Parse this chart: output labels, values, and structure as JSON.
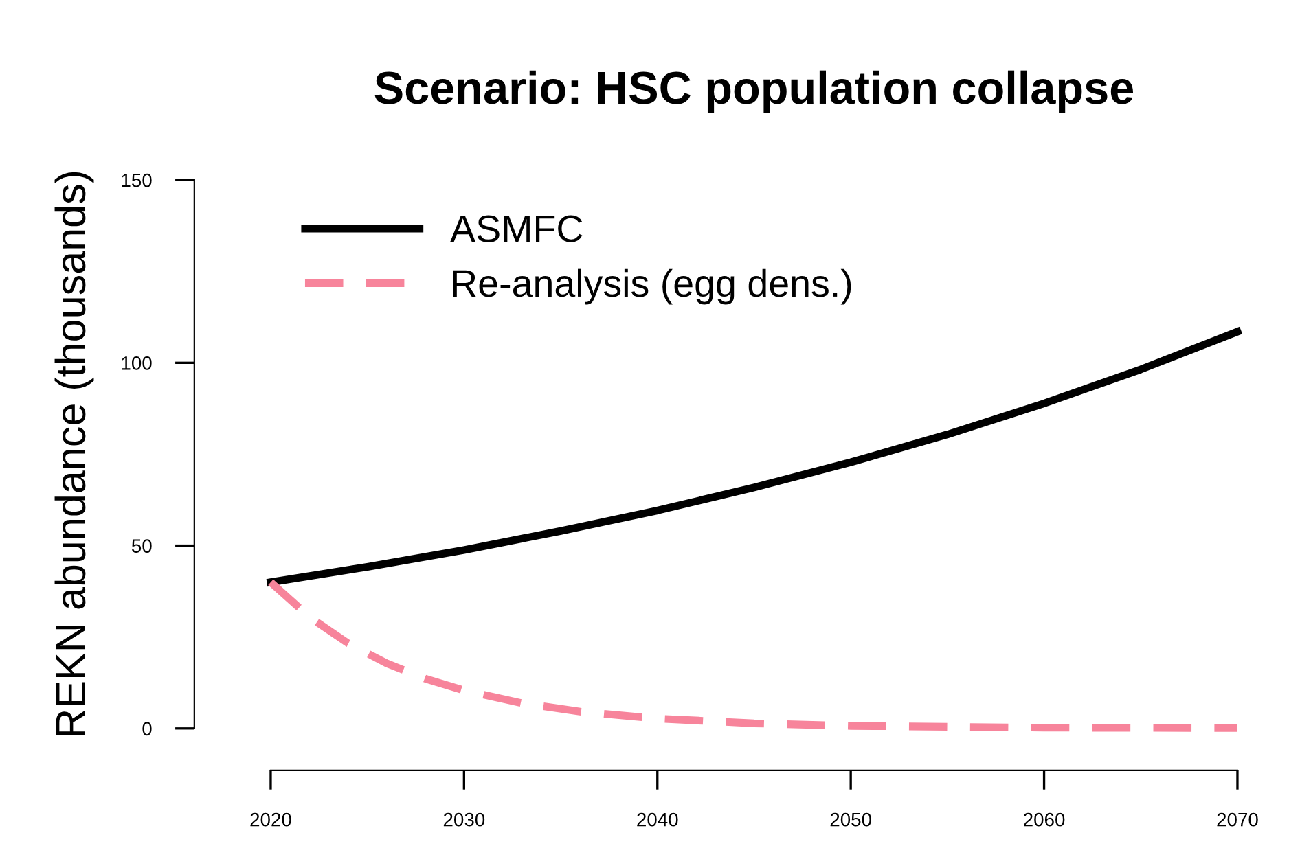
{
  "chart_data": {
    "type": "line",
    "title": "Scenario: HSC population collapse",
    "ylabel": "REKN abundance (thousands)",
    "x": [
      2020,
      2025,
      2030,
      2035,
      2040,
      2045,
      2050,
      2055,
      2060,
      2065,
      2070
    ],
    "series": [
      {
        "name": "ASMFC",
        "color": "#000000",
        "line_style": "solid",
        "values": [
          40,
          44.2,
          48.8,
          54.0,
          59.6,
          65.9,
          72.8,
          80.4,
          88.9,
          98.2,
          108.5
        ]
      },
      {
        "name": "Re-analysis (egg dens.)",
        "color": "#f7849b",
        "line_style": "dashed",
        "x": [
          2020,
          2022,
          2024,
          2026,
          2028,
          2030,
          2033,
          2036,
          2040,
          2045,
          2050,
          2060,
          2070
        ],
        "values": [
          40,
          30.5,
          23.3,
          17.8,
          13.6,
          10.4,
          6.9,
          4.6,
          2.7,
          1.4,
          0.7,
          0.2,
          0.1
        ]
      }
    ],
    "xlim": [
      2020,
      2070
    ],
    "ylim": [
      0,
      150
    ],
    "xticks": [
      2020,
      2030,
      2040,
      2050,
      2060,
      2070
    ],
    "yticks": [
      0,
      50,
      100,
      150
    ],
    "grid": false,
    "legend": "top left",
    "marker": "none"
  }
}
